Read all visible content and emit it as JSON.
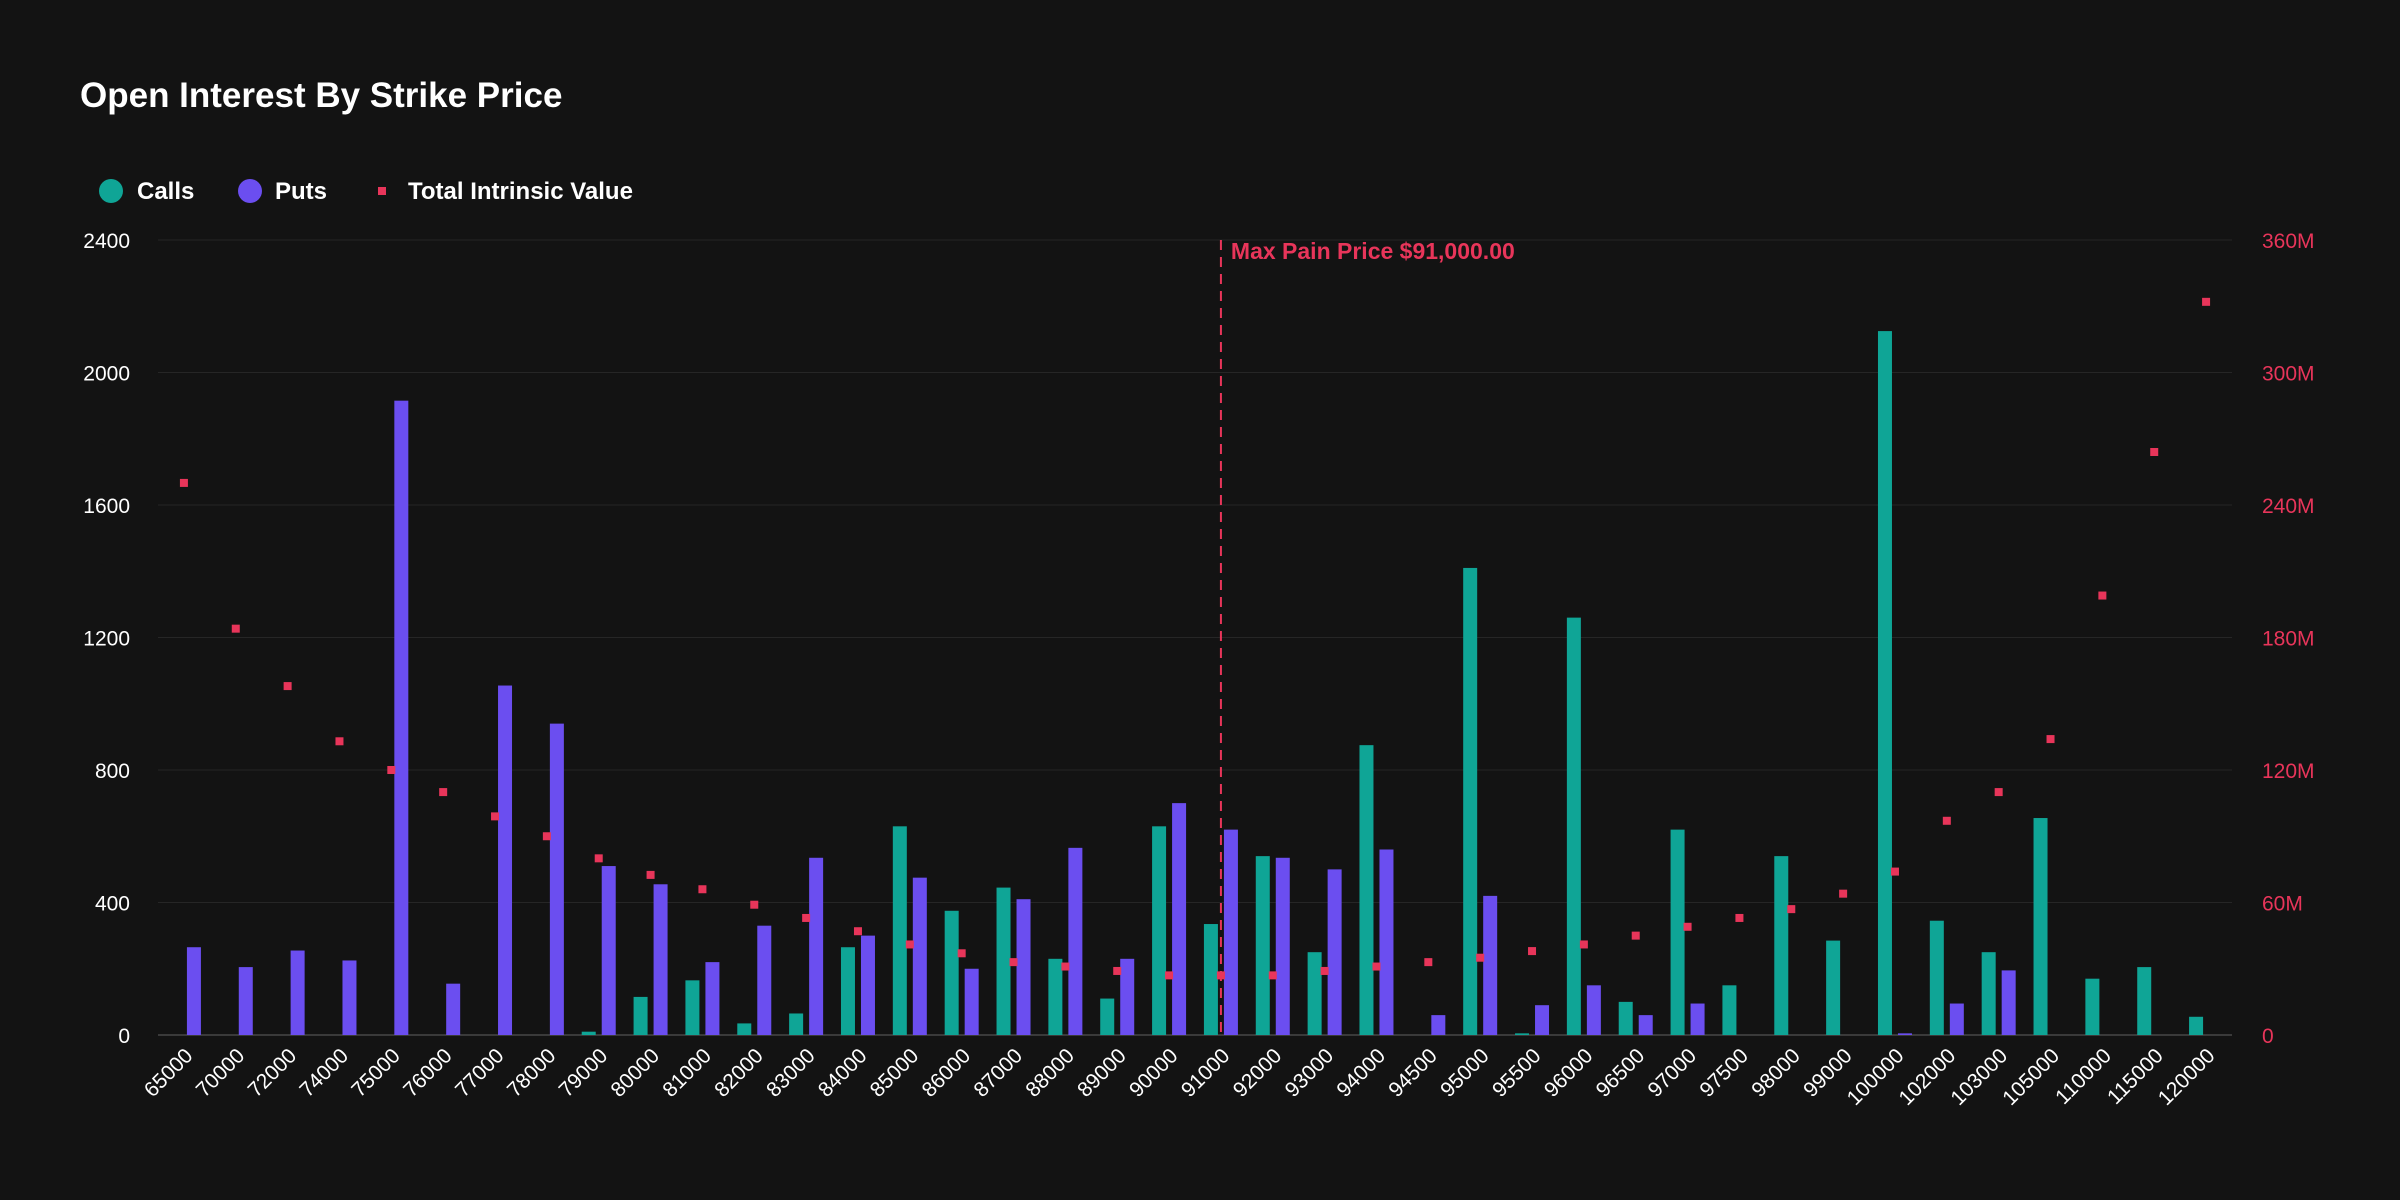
{
  "chart_data": {
    "type": "bar",
    "title": "Open Interest By Strike Price",
    "categories": [
      "65000",
      "70000",
      "72000",
      "74000",
      "75000",
      "76000",
      "77000",
      "78000",
      "79000",
      "80000",
      "81000",
      "82000",
      "83000",
      "84000",
      "85000",
      "86000",
      "87000",
      "88000",
      "89000",
      "90000",
      "91000",
      "92000",
      "93000",
      "94000",
      "94500",
      "95000",
      "95500",
      "96000",
      "96500",
      "97000",
      "97500",
      "98000",
      "99000",
      "100000",
      "102000",
      "103000",
      "105000",
      "110000",
      "115000",
      "120000"
    ],
    "series": [
      {
        "name": "Calls",
        "axis": "left",
        "color": "#0fa596",
        "values": [
          0,
          0,
          0,
          0,
          0,
          0,
          0,
          0,
          10,
          115,
          165,
          35,
          65,
          265,
          630,
          375,
          445,
          230,
          110,
          630,
          335,
          540,
          250,
          875,
          0,
          1410,
          5,
          1260,
          100,
          620,
          150,
          540,
          285,
          2125,
          345,
          250,
          655,
          170,
          205,
          55
        ]
      },
      {
        "name": "Puts",
        "axis": "left",
        "color": "#6b4ef0",
        "values": [
          265,
          205,
          255,
          225,
          1915,
          155,
          1055,
          940,
          510,
          455,
          220,
          330,
          535,
          300,
          475,
          200,
          410,
          565,
          230,
          700,
          620,
          535,
          500,
          560,
          60,
          420,
          90,
          150,
          60,
          95,
          0,
          0,
          0,
          5,
          95,
          195,
          0,
          0,
          0,
          0
        ]
      },
      {
        "name": "Total Intrinsic Value",
        "axis": "right",
        "color": "#e8355a",
        "type": "scatter",
        "values": [
          250,
          184,
          158,
          133,
          120,
          110,
          99,
          90,
          80,
          72.5,
          66,
          59,
          53,
          47,
          41,
          37,
          33,
          31,
          29,
          27,
          27,
          27,
          29,
          31,
          33,
          35,
          38,
          41,
          45,
          49,
          53,
          57,
          64,
          74,
          97,
          110,
          134,
          199,
          264,
          332
        ]
      }
    ],
    "ylim_left": [
      0,
      2400
    ],
    "yticks_left": [
      "0",
      "400",
      "800",
      "1200",
      "1600",
      "2000",
      "2400"
    ],
    "ylim_right": [
      0,
      360
    ],
    "yticks_right": [
      "0",
      "60M",
      "120M",
      "180M",
      "240M",
      "300M",
      "360M"
    ],
    "annotation": {
      "label": "Max Pain Price $91,000.00",
      "category": "91000"
    },
    "grid": true,
    "legend": "top-left",
    "colors": {
      "background": "#131313",
      "grid": "#262626",
      "axis": "#3a3a3a",
      "text": "#ffffff",
      "accent": "#e8355a"
    }
  }
}
